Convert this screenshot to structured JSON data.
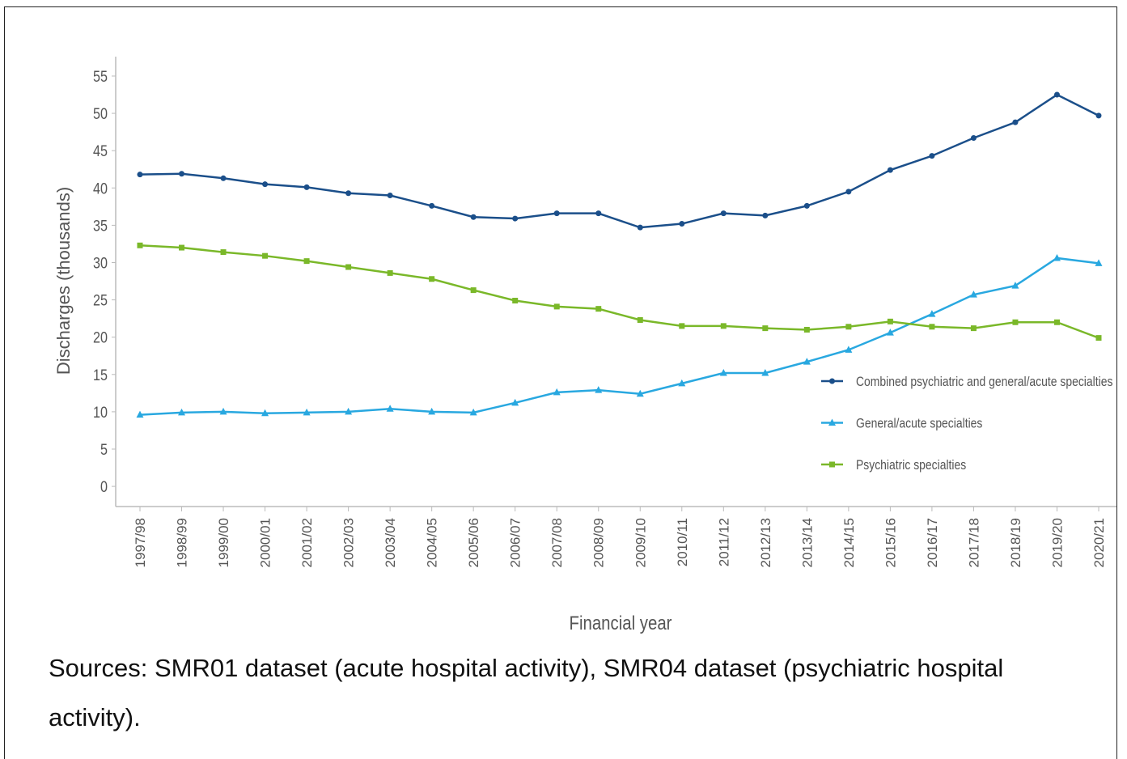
{
  "chart_data": {
    "type": "line",
    "ylabel": "Discharges (thousands)",
    "xlabel": "Financial year",
    "categories": [
      "1997/98",
      "1998/99",
      "1999/00",
      "2000/01",
      "2001/02",
      "2002/03",
      "2003/04",
      "2004/05",
      "2005/06",
      "2006/07",
      "2007/08",
      "2008/09",
      "2009/10",
      "2010/11",
      "2011/12",
      "2012/13",
      "2013/14",
      "2014/15",
      "2015/16",
      "2016/17",
      "2017/18",
      "2018/19",
      "2019/20",
      "2020/21"
    ],
    "series": [
      {
        "name": "Combined psychiatric and general/acute specialties",
        "color": "#1b4f8a",
        "marker": "circle",
        "values": [
          41.8,
          41.9,
          41.3,
          40.5,
          40.1,
          39.3,
          39.0,
          37.6,
          36.1,
          35.9,
          36.6,
          36.6,
          34.7,
          35.2,
          36.6,
          36.3,
          37.6,
          39.5,
          42.4,
          44.3,
          46.7,
          48.8,
          52.5,
          49.7
        ]
      },
      {
        "name": "General/acute specialties",
        "color": "#29a8e0",
        "marker": "triangle",
        "values": [
          9.6,
          9.9,
          10.0,
          9.8,
          9.9,
          10.0,
          10.4,
          10.0,
          9.9,
          11.2,
          12.6,
          12.9,
          12.4,
          13.8,
          15.2,
          15.2,
          16.7,
          18.3,
          20.6,
          23.1,
          25.7,
          26.9,
          30.6,
          29.9
        ]
      },
      {
        "name": "Psychiatric specialties",
        "color": "#7ab829",
        "marker": "square",
        "values": [
          32.3,
          32.0,
          31.4,
          30.9,
          30.2,
          29.4,
          28.6,
          27.8,
          26.3,
          24.9,
          24.1,
          23.8,
          22.3,
          21.5,
          21.5,
          21.2,
          21.0,
          21.4,
          22.1,
          21.4,
          21.2,
          22.0,
          22.0,
          19.9
        ]
      }
    ],
    "ylim": [
      -2.7,
      57.6
    ],
    "yticks": [
      0,
      5,
      10,
      15,
      20,
      25,
      30,
      35,
      40,
      45,
      50,
      55
    ],
    "grid": false,
    "legend": "right"
  },
  "source": "Sources: SMR01 dataset (acute hospital activity), SMR04 dataset (psychiatric hospital activity)."
}
